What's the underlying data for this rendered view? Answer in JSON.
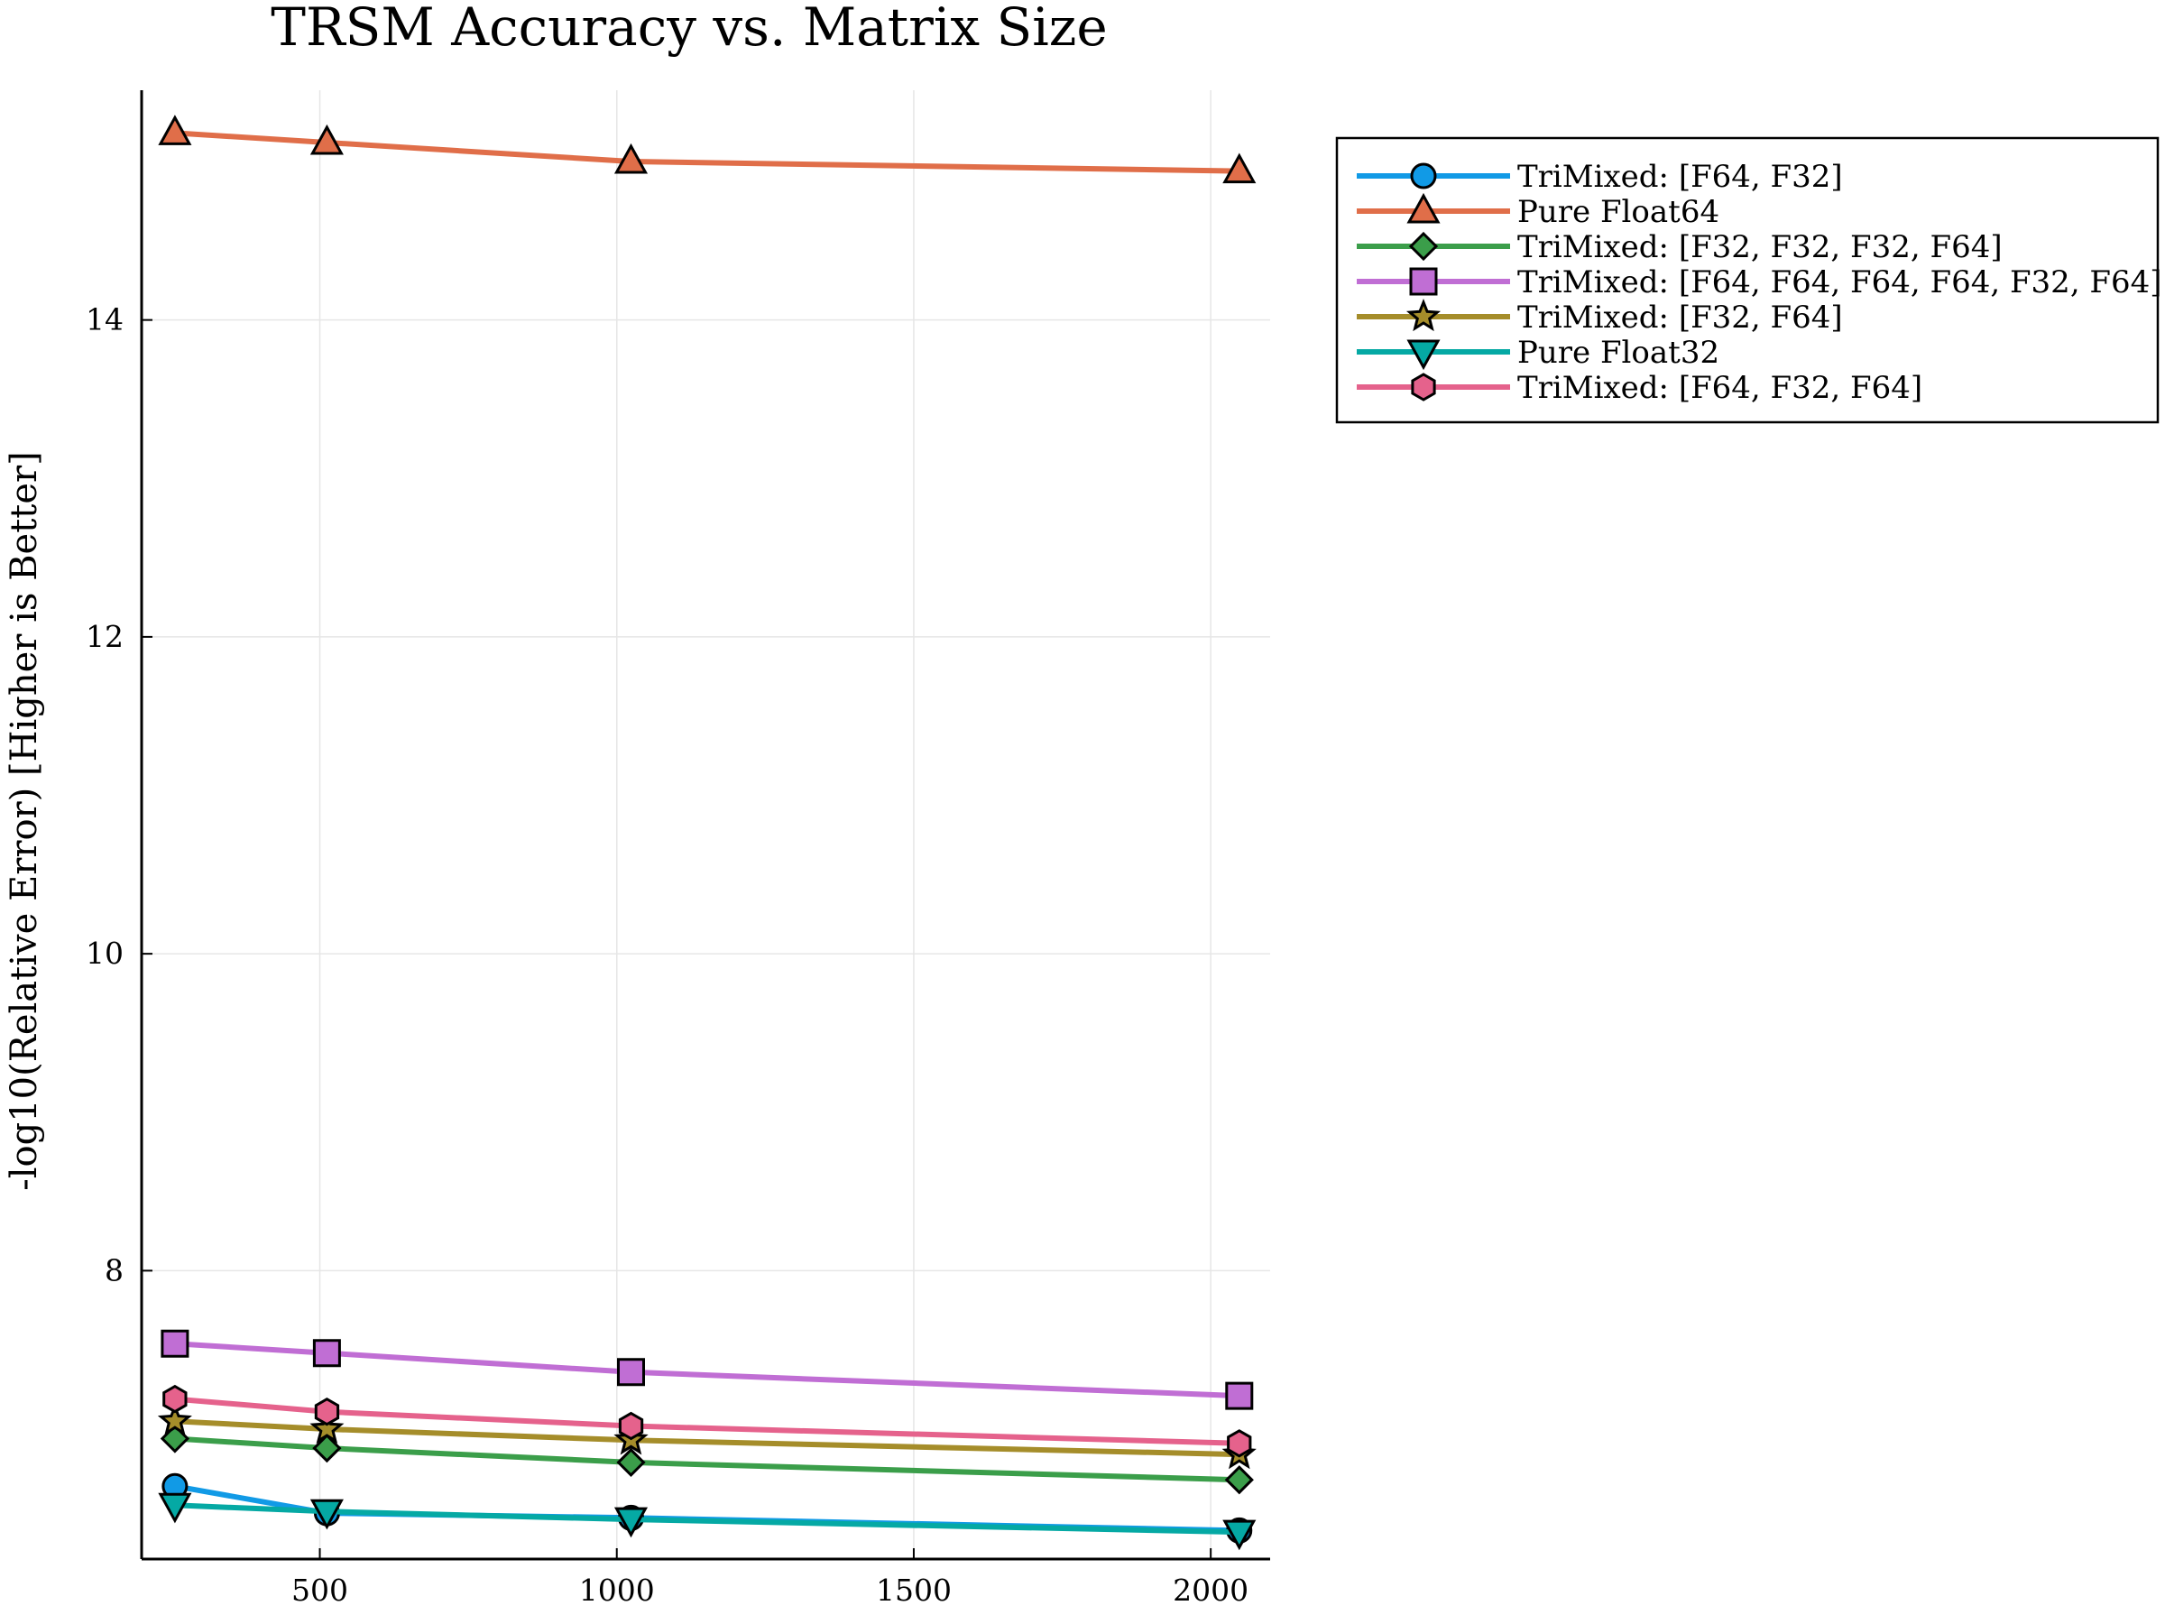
{
  "chart_data": {
    "type": "line",
    "title": "TRSM Accuracy vs. Matrix Size",
    "xlabel": "",
    "ylabel": "-log10(Relative Error) [Higher is Better]",
    "xlim": [
      200,
      2100
    ],
    "ylim": [
      6.18,
      15.45
    ],
    "xticks": [
      500,
      1000,
      1500,
      2000
    ],
    "yticks": [
      8,
      10,
      12,
      14
    ],
    "grid": true,
    "legend_position": "outside-top-right",
    "x": [
      256,
      512,
      1024,
      2048
    ],
    "series": [
      {
        "name": "TriMixed: [F64, F32]",
        "color": "#119ae6",
        "marker": "circle",
        "values": [
          6.64,
          6.47,
          6.44,
          6.36
        ]
      },
      {
        "name": "Pure Float64",
        "color": "#e06e49",
        "marker": "triangle-up",
        "values": [
          15.18,
          15.12,
          15.0,
          14.94
        ]
      },
      {
        "name": "TriMixed: [F32, F32, F32, F64]",
        "color": "#3b9e4a",
        "marker": "diamond",
        "values": [
          6.94,
          6.88,
          6.79,
          6.68
        ]
      },
      {
        "name": "TriMixed: [F64, F64, F64, F64, F32, F64]",
        "color": "#c06ed4",
        "marker": "square",
        "values": [
          7.54,
          7.48,
          7.36,
          7.21
        ]
      },
      {
        "name": "TriMixed: [F32, F64]",
        "color": "#a58d2a",
        "marker": "star",
        "values": [
          7.05,
          7.0,
          6.93,
          6.84
        ]
      },
      {
        "name": "Pure Float32",
        "color": "#05a9a4",
        "marker": "triangle-down",
        "values": [
          6.52,
          6.48,
          6.43,
          6.35
        ]
      },
      {
        "name": "TriMixed: [F64, F32, F64]",
        "color": "#e5628c",
        "marker": "hexagon",
        "values": [
          7.19,
          7.11,
          7.02,
          6.91
        ]
      }
    ]
  }
}
